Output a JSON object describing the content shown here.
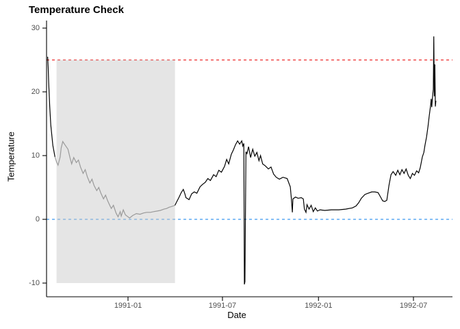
{
  "figure": {
    "title": "Temperature Check",
    "background_color": "#FFFFFF"
  },
  "chart_data": {
    "type": "line",
    "title": "Temperature Check",
    "xlabel": "Date",
    "ylabel": "Temperature",
    "ylim": [
      -10,
      30
    ],
    "grid": false,
    "legend": false,
    "axis_color": "#000000",
    "tick_label_color": "#4D4D4D",
    "y_ticks": [
      "30",
      "20",
      "10",
      "0",
      "-10"
    ],
    "y_tick_values": [
      30,
      20,
      10,
      0,
      -10
    ],
    "x_ticks": [
      {
        "label": "1991-01",
        "date": "1991-01-01"
      },
      {
        "label": "1991-07",
        "date": "1991-07-01"
      },
      {
        "label": "1992-01",
        "date": "1992-01-01"
      },
      {
        "label": "1992-07",
        "date": "1992-07-01"
      }
    ],
    "x_domain": [
      "1990-07-28",
      "1992-09-08"
    ],
    "hlines": [
      {
        "name": "upper-threshold-line",
        "y": 25,
        "color": "#EE2C2C",
        "style": "dashed"
      },
      {
        "name": "zero-reference-line",
        "y": 0,
        "color": "#3B99F0",
        "style": "dashed"
      }
    ],
    "highlight_region": {
      "start": "1990-08-17",
      "end": "1991-04-01",
      "y_min": -10,
      "y_max": 25,
      "fill": "#C8C8C8",
      "opacity": 0.47,
      "line_color": "#999999"
    },
    "series": [
      {
        "name": "temperature",
        "color": "#000000",
        "points": [
          [
            "1990-07-31",
            25.5
          ],
          [
            "1990-08-01",
            23.8
          ],
          [
            "1990-08-02",
            21.5
          ],
          [
            "1990-08-04",
            17.8
          ],
          [
            "1990-08-06",
            14.8
          ],
          [
            "1990-08-10",
            11.6
          ],
          [
            "1990-08-14",
            9.8
          ],
          [
            "1990-08-17",
            9.0
          ],
          [
            "1990-08-20",
            8.5
          ],
          [
            "1990-08-24",
            9.8
          ],
          [
            "1990-08-26",
            11.2
          ],
          [
            "1990-08-29",
            12.2
          ],
          [
            "1990-09-02",
            11.7
          ],
          [
            "1990-09-08",
            11.0
          ],
          [
            "1990-09-12",
            9.6
          ],
          [
            "1990-09-15",
            8.7
          ],
          [
            "1990-09-19",
            9.7
          ],
          [
            "1990-09-24",
            8.9
          ],
          [
            "1990-09-28",
            9.3
          ],
          [
            "1990-10-02",
            8.2
          ],
          [
            "1990-10-07",
            7.2
          ],
          [
            "1990-10-11",
            7.8
          ],
          [
            "1990-10-15",
            6.7
          ],
          [
            "1990-10-20",
            5.7
          ],
          [
            "1990-10-24",
            6.3
          ],
          [
            "1990-10-28",
            5.3
          ],
          [
            "1990-11-02",
            4.5
          ],
          [
            "1990-11-06",
            5.0
          ],
          [
            "1990-11-10",
            4.1
          ],
          [
            "1990-11-15",
            3.2
          ],
          [
            "1990-11-19",
            3.8
          ],
          [
            "1990-11-23",
            2.9
          ],
          [
            "1990-11-27",
            2.2
          ],
          [
            "1990-11-30",
            1.7
          ],
          [
            "1990-12-04",
            2.2
          ],
          [
            "1990-12-09",
            1.0
          ],
          [
            "1990-12-13",
            0.4
          ],
          [
            "1990-12-17",
            1.2
          ],
          [
            "1990-12-19",
            0.5
          ],
          [
            "1990-12-23",
            1.5
          ],
          [
            "1990-12-27",
            0.7
          ],
          [
            "1991-01-01",
            0.4
          ],
          [
            "1991-01-04",
            0.2
          ],
          [
            "1991-01-10",
            0.6
          ],
          [
            "1991-01-17",
            0.9
          ],
          [
            "1991-01-24",
            0.8
          ],
          [
            "1991-01-31",
            1.0
          ],
          [
            "1991-02-06",
            1.1
          ],
          [
            "1991-02-13",
            1.1
          ],
          [
            "1991-02-19",
            1.2
          ],
          [
            "1991-02-26",
            1.3
          ],
          [
            "1991-03-04",
            1.4
          ],
          [
            "1991-03-11",
            1.6
          ],
          [
            "1991-03-16",
            1.7
          ],
          [
            "1991-03-21",
            1.9
          ],
          [
            "1991-03-25",
            2.0
          ],
          [
            "1991-04-01",
            2.2
          ],
          [
            "1991-04-04",
            2.7
          ],
          [
            "1991-04-09",
            3.5
          ],
          [
            "1991-04-13",
            4.2
          ],
          [
            "1991-04-17",
            4.7
          ],
          [
            "1991-04-20",
            4.0
          ],
          [
            "1991-04-22",
            3.4
          ],
          [
            "1991-04-28",
            3.1
          ],
          [
            "1991-05-03",
            4.0
          ],
          [
            "1991-05-08",
            4.3
          ],
          [
            "1991-05-13",
            4.1
          ],
          [
            "1991-05-19",
            5.1
          ],
          [
            "1991-05-24",
            5.5
          ],
          [
            "1991-05-29",
            5.8
          ],
          [
            "1991-06-03",
            6.4
          ],
          [
            "1991-06-08",
            6.1
          ],
          [
            "1991-06-14",
            7.0
          ],
          [
            "1991-06-19",
            6.7
          ],
          [
            "1991-06-24",
            7.7
          ],
          [
            "1991-06-29",
            7.4
          ],
          [
            "1991-07-05",
            8.3
          ],
          [
            "1991-07-09",
            9.4
          ],
          [
            "1991-07-13",
            8.7
          ],
          [
            "1991-07-18",
            10.2
          ],
          [
            "1991-07-22",
            10.9
          ],
          [
            "1991-07-26",
            11.7
          ],
          [
            "1991-07-30",
            12.3
          ],
          [
            "1991-08-03",
            11.8
          ],
          [
            "1991-08-07",
            12.3
          ],
          [
            "1991-08-09",
            11.5
          ],
          [
            "1991-08-11",
            11.9
          ],
          [
            "1991-08-12",
            -10.2
          ],
          [
            "1991-08-13",
            -9.8
          ],
          [
            "1991-08-15",
            10.6
          ],
          [
            "1991-08-17",
            10.3
          ],
          [
            "1991-08-20",
            11.4
          ],
          [
            "1991-08-24",
            9.7
          ],
          [
            "1991-08-28",
            11.0
          ],
          [
            "1991-09-01",
            9.9
          ],
          [
            "1991-09-05",
            10.5
          ],
          [
            "1991-09-09",
            9.2
          ],
          [
            "1991-09-12",
            10.0
          ],
          [
            "1991-09-16",
            8.7
          ],
          [
            "1991-09-21",
            8.4
          ],
          [
            "1991-09-27",
            7.9
          ],
          [
            "1991-10-02",
            8.2
          ],
          [
            "1991-10-07",
            7.1
          ],
          [
            "1991-10-12",
            6.6
          ],
          [
            "1991-10-18",
            6.3
          ],
          [
            "1991-10-25",
            6.6
          ],
          [
            "1991-11-02",
            6.4
          ],
          [
            "1991-11-08",
            5.1
          ],
          [
            "1991-11-10",
            3.3
          ],
          [
            "1991-11-12",
            1.1
          ],
          [
            "1991-11-13",
            3.2
          ],
          [
            "1991-11-18",
            3.5
          ],
          [
            "1991-11-23",
            3.3
          ],
          [
            "1991-11-29",
            3.4
          ],
          [
            "1991-12-03",
            3.2
          ],
          [
            "1991-12-05",
            1.6
          ],
          [
            "1991-12-08",
            1.1
          ],
          [
            "1991-12-10",
            2.3
          ],
          [
            "1991-12-14",
            1.6
          ],
          [
            "1991-12-18",
            2.2
          ],
          [
            "1991-12-22",
            1.2
          ],
          [
            "1991-12-26",
            1.8
          ],
          [
            "1991-12-30",
            1.3
          ],
          [
            "1992-01-04",
            1.5
          ],
          [
            "1992-01-13",
            1.4
          ],
          [
            "1992-01-26",
            1.5
          ],
          [
            "1992-02-09",
            1.5
          ],
          [
            "1992-02-22",
            1.6
          ],
          [
            "1992-03-06",
            1.8
          ],
          [
            "1992-03-13",
            2.1
          ],
          [
            "1992-03-18",
            2.6
          ],
          [
            "1992-03-23",
            3.3
          ],
          [
            "1992-03-30",
            3.9
          ],
          [
            "1992-04-05",
            4.1
          ],
          [
            "1992-04-12",
            4.3
          ],
          [
            "1992-04-18",
            4.3
          ],
          [
            "1992-04-24",
            4.2
          ],
          [
            "1992-04-29",
            3.5
          ],
          [
            "1992-05-03",
            2.9
          ],
          [
            "1992-05-07",
            2.8
          ],
          [
            "1992-05-11",
            3.0
          ],
          [
            "1992-05-15",
            5.3
          ],
          [
            "1992-05-19",
            7.0
          ],
          [
            "1992-05-23",
            7.5
          ],
          [
            "1992-05-28",
            6.9
          ],
          [
            "1992-06-01",
            7.7
          ],
          [
            "1992-06-05",
            7.0
          ],
          [
            "1992-06-09",
            7.8
          ],
          [
            "1992-06-13",
            7.2
          ],
          [
            "1992-06-17",
            7.9
          ],
          [
            "1992-06-21",
            6.9
          ],
          [
            "1992-06-25",
            6.4
          ],
          [
            "1992-06-29",
            7.2
          ],
          [
            "1992-07-03",
            6.9
          ],
          [
            "1992-07-07",
            7.6
          ],
          [
            "1992-07-11",
            7.3
          ],
          [
            "1992-07-14",
            8.1
          ],
          [
            "1992-07-18",
            9.8
          ],
          [
            "1992-07-21",
            10.5
          ],
          [
            "1992-07-23",
            11.6
          ],
          [
            "1992-07-26",
            12.9
          ],
          [
            "1992-07-29",
            14.6
          ],
          [
            "1992-07-31",
            16.1
          ],
          [
            "1992-08-03",
            18.0
          ],
          [
            "1992-08-04",
            18.9
          ],
          [
            "1992-08-05",
            17.6
          ],
          [
            "1992-08-07",
            19.6
          ],
          [
            "1992-08-08",
            20.4
          ],
          [
            "1992-08-09",
            28.7
          ],
          [
            "1992-08-10",
            19.3
          ],
          [
            "1992-08-11",
            24.3
          ],
          [
            "1992-08-12",
            17.7
          ],
          [
            "1992-08-13",
            18.6
          ]
        ]
      }
    ]
  }
}
